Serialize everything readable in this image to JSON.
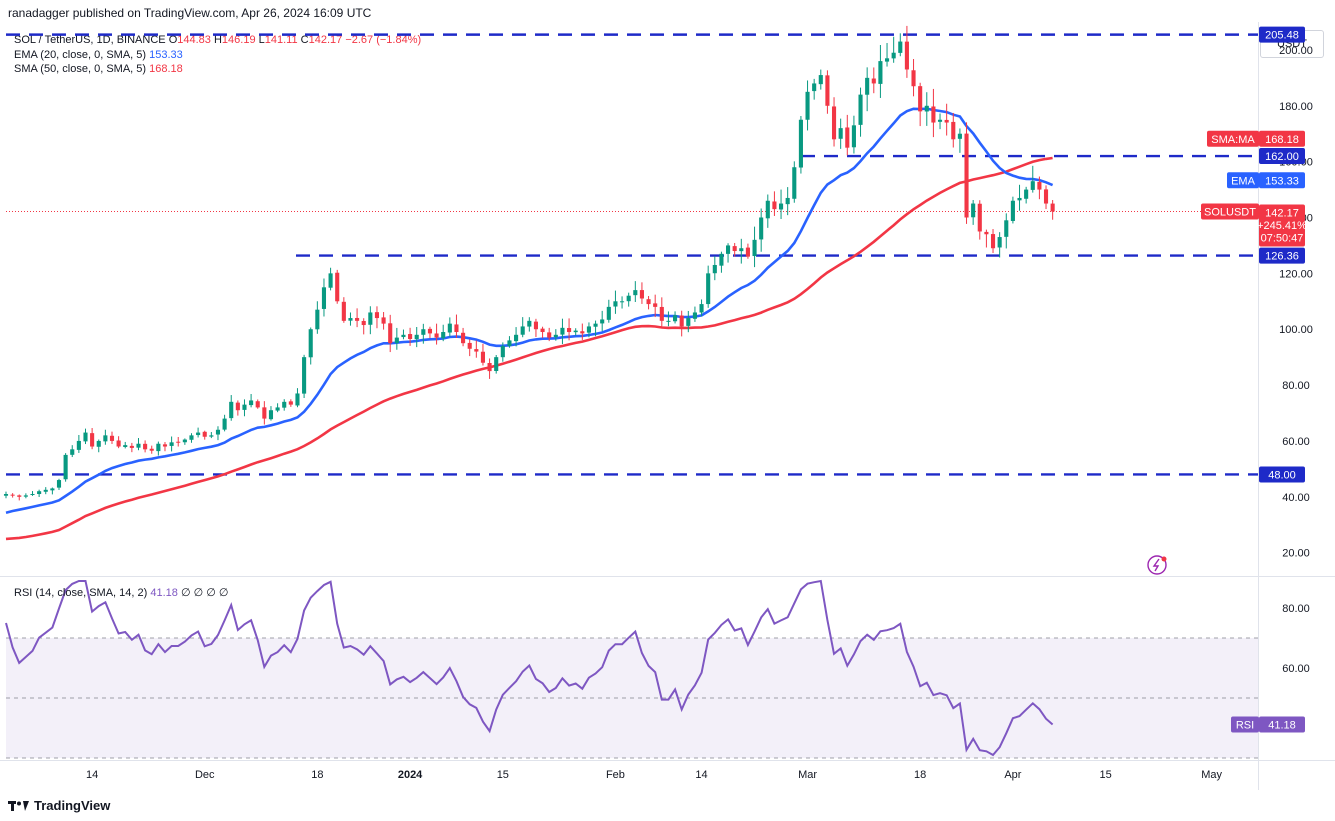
{
  "header": {
    "publish_line": "ranadagger published on TradingView.com, Apr 26, 2024 16:09 UTC"
  },
  "legend": {
    "symbol": "SOL / TetherUS, 1D, BINANCE",
    "o_label": "O",
    "o_value": "144.83",
    "h_label": "H",
    "h_value": "146.19",
    "l_label": "L",
    "l_value": "141.11",
    "c_label": "C",
    "c_value": "142.17",
    "change": "−2.67 (−1.84%)",
    "ema_label": "EMA (20, close, 0, SMA, 5)",
    "ema_value": "153.33",
    "sma_label": "SMA (50, close, 0, SMA, 5)",
    "sma_value": "168.18"
  },
  "currency": "USDT",
  "rsi_legend": {
    "label": "RSI (14, close, SMA, 14, 2)",
    "value": "41.18",
    "extra": "∅ ∅ ∅ ∅"
  },
  "footer": {
    "brand": "TradingView",
    "logo_icon": "tradingview-logo-icon"
  },
  "badges": {
    "r205": "205.48",
    "sma_label": "SMA:MA",
    "sma_value": "168.18",
    "r162": "162.00",
    "ema_label": "EMA",
    "ema_value": "153.33",
    "price_label": "SOLUSDT",
    "price_value": "142.17",
    "price_change": "+245.41%",
    "price_timer": "07:50:47",
    "r126": "126.36",
    "r48": "48.00",
    "rsi_label": "RSI",
    "rsi_value": "41.18"
  },
  "colors": {
    "up": "#089981",
    "down": "#f23645",
    "ema": "#2962ff",
    "sma": "#f23645",
    "level": "#1e2ac8",
    "rsi": "#7e57c2",
    "rsi_band": "#7e57c2"
  },
  "chart_data": [
    {
      "type": "candlestick",
      "y_axis": {
        "ylim": [
          12,
          210
        ],
        "ticks": [
          20,
          40,
          60,
          80,
          100,
          120,
          140,
          160,
          180,
          200
        ]
      },
      "x_axis": {
        "date_range": [
          "2023-11-01",
          "2024-05-08"
        ],
        "ticks": [
          {
            "date": "2023-11-14",
            "label": "14"
          },
          {
            "date": "2023-12-01",
            "label": "Dec"
          },
          {
            "date": "2023-12-18",
            "label": "18"
          },
          {
            "date": "2024-01-01",
            "label": "2024"
          },
          {
            "date": "2024-01-15",
            "label": "15"
          },
          {
            "date": "2024-02-01",
            "label": "Feb"
          },
          {
            "date": "2024-02-14",
            "label": "14"
          },
          {
            "date": "2024-03-01",
            "label": "Mar"
          },
          {
            "date": "2024-03-18",
            "label": "18"
          },
          {
            "date": "2024-04-01",
            "label": "Apr"
          },
          {
            "date": "2024-04-15",
            "label": "15"
          },
          {
            "date": "2024-05-01",
            "label": "May"
          }
        ]
      },
      "first_date": "2023-11-01",
      "close": [
        41,
        40.5,
        40,
        40.5,
        41,
        42,
        42.5,
        43,
        46,
        55,
        57,
        60,
        63,
        58,
        60,
        62,
        60,
        58,
        58.5,
        57.5,
        59,
        57,
        56.5,
        59,
        58,
        59.5,
        59.5,
        60.5,
        62,
        63,
        61.5,
        62,
        64,
        68,
        74,
        71,
        73,
        74.5,
        72,
        68,
        71,
        72,
        74,
        73,
        77,
        90,
        100,
        107,
        115,
        120,
        110,
        103,
        104,
        103,
        101.5,
        106,
        104,
        102,
        95,
        97,
        98,
        96.5,
        98,
        100,
        98.5,
        97,
        99,
        102,
        99,
        95,
        93,
        92,
        88,
        85,
        90,
        94,
        96,
        98,
        101,
        103,
        100,
        99,
        97,
        98,
        100.5,
        99,
        99.5,
        98.5,
        101,
        102,
        103.5,
        108,
        110,
        110,
        112,
        114,
        111,
        109,
        108,
        103,
        103,
        105,
        101,
        104,
        106,
        109,
        120,
        123,
        127,
        130,
        128,
        129,
        126,
        132,
        140,
        146,
        143,
        145,
        147,
        158,
        175,
        185,
        188,
        191,
        180,
        168,
        172,
        165,
        173,
        184,
        190,
        188,
        196,
        197,
        199,
        203,
        193,
        187,
        178,
        180,
        174,
        175,
        174,
        168,
        170,
        140,
        145,
        135,
        134,
        129,
        133,
        139,
        146,
        147,
        150,
        153,
        150,
        145,
        142.17
      ],
      "ema20_value": 153.33,
      "sma50_value": 168.18,
      "last_price": 142.17,
      "levels": [
        205.48,
        162.0,
        126.36,
        48.0
      ]
    },
    {
      "type": "line",
      "name": "RSI",
      "ylim": [
        30,
        90
      ],
      "ticks": [
        60,
        80
      ],
      "band": [
        30,
        70
      ],
      "midline": 50,
      "last_value": 41.18
    }
  ]
}
